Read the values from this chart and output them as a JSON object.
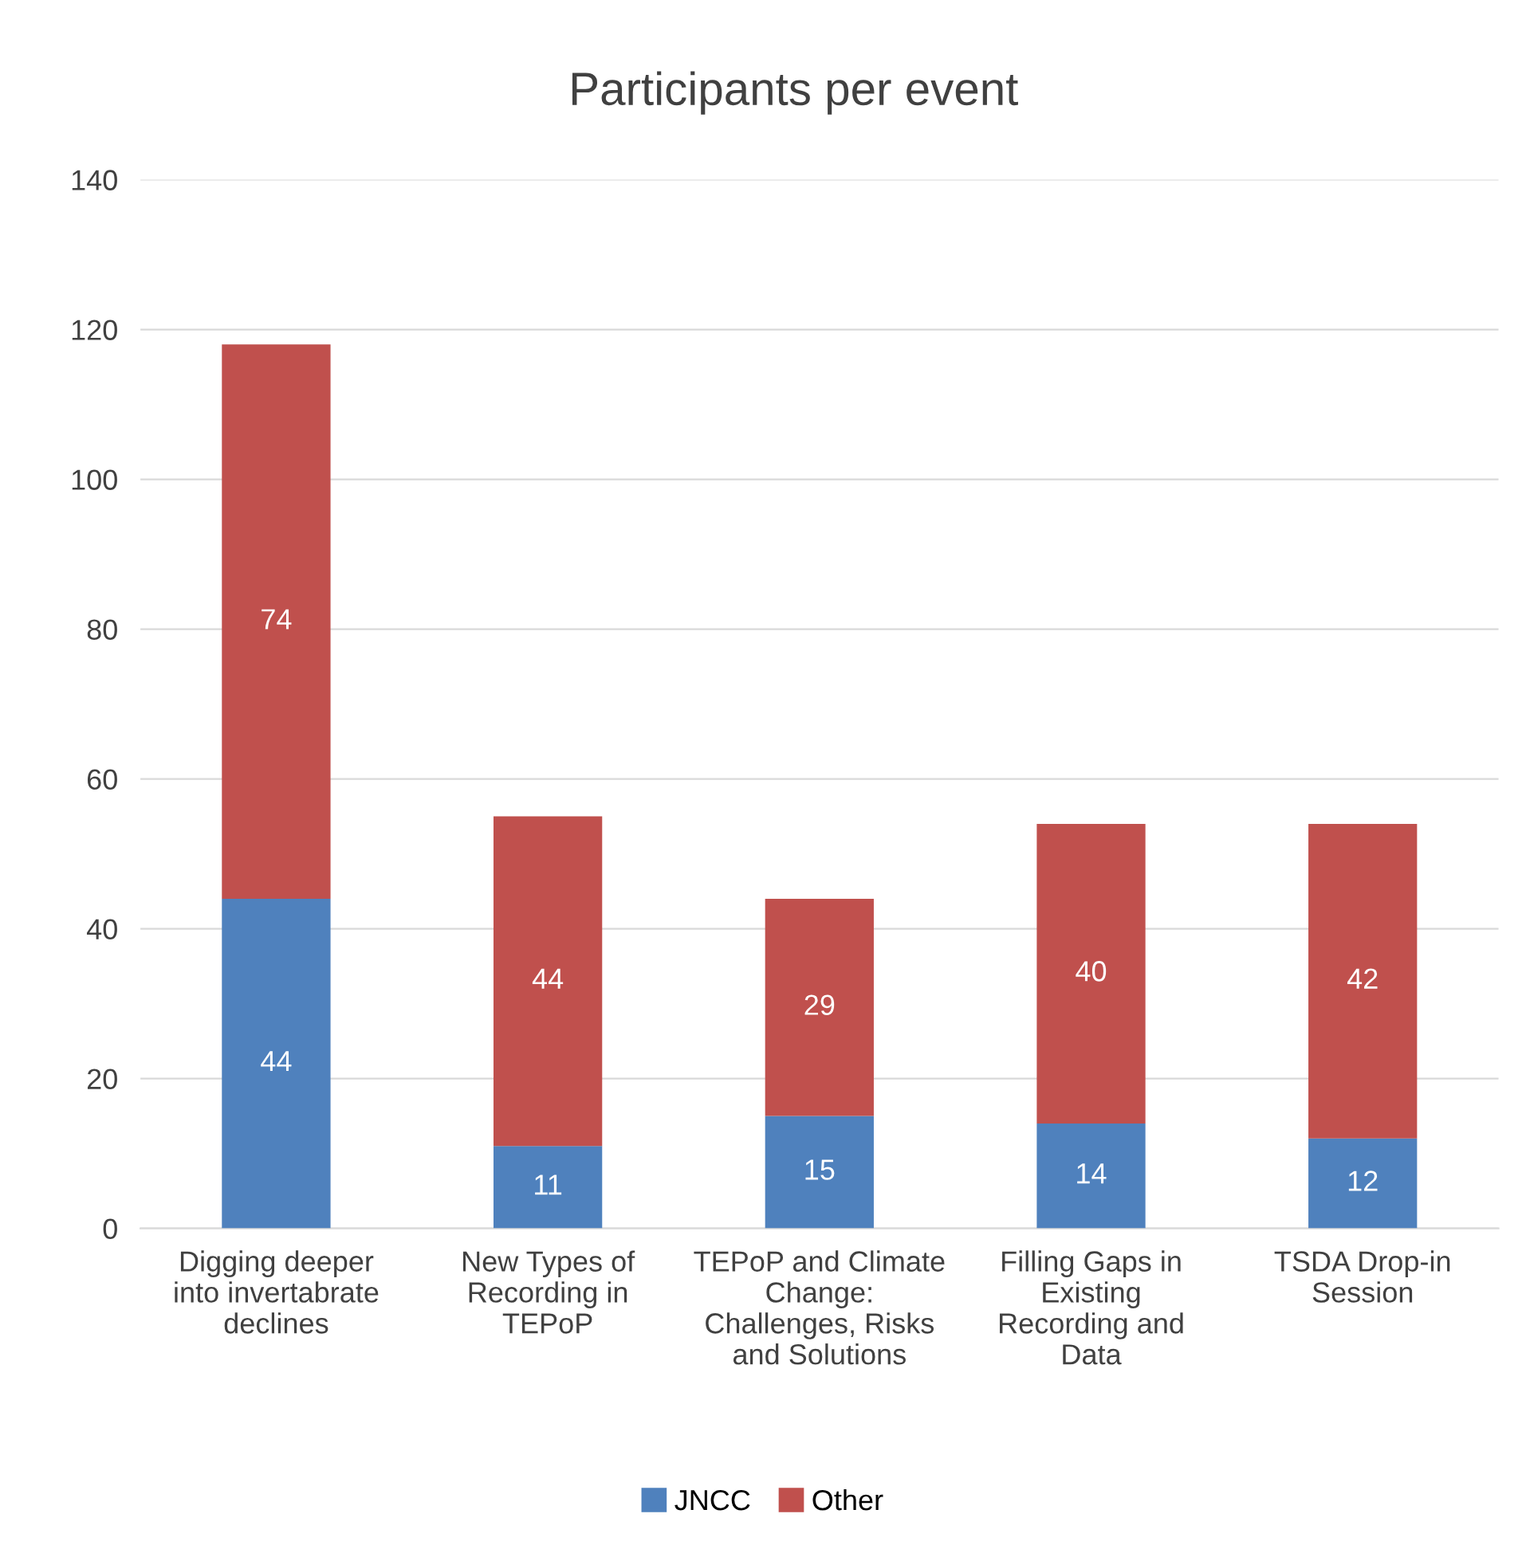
{
  "chart_data": {
    "type": "bar",
    "title": "Participants per event",
    "categories": [
      "Digging deeper into invertabrate declines",
      "New Types of Recording in TEPoP",
      "TEPoP and Climate Change: Challenges, Risks and Solutions",
      "Filling Gaps in Existing Recording and Data",
      "TSDA Drop-in Session"
    ],
    "series": [
      {
        "name": "JNCC",
        "color": "#4f81bd",
        "values": [
          44,
          11,
          15,
          14,
          12
        ]
      },
      {
        "name": "Other",
        "color": "#c0504d",
        "values": [
          74,
          44,
          29,
          40,
          42
        ]
      }
    ],
    "stacked": true,
    "data_labels": true,
    "ylim": [
      0,
      140
    ],
    "yticks": [
      0,
      20,
      40,
      60,
      80,
      100,
      120,
      140
    ],
    "grid": "y",
    "legend": "bottom"
  }
}
